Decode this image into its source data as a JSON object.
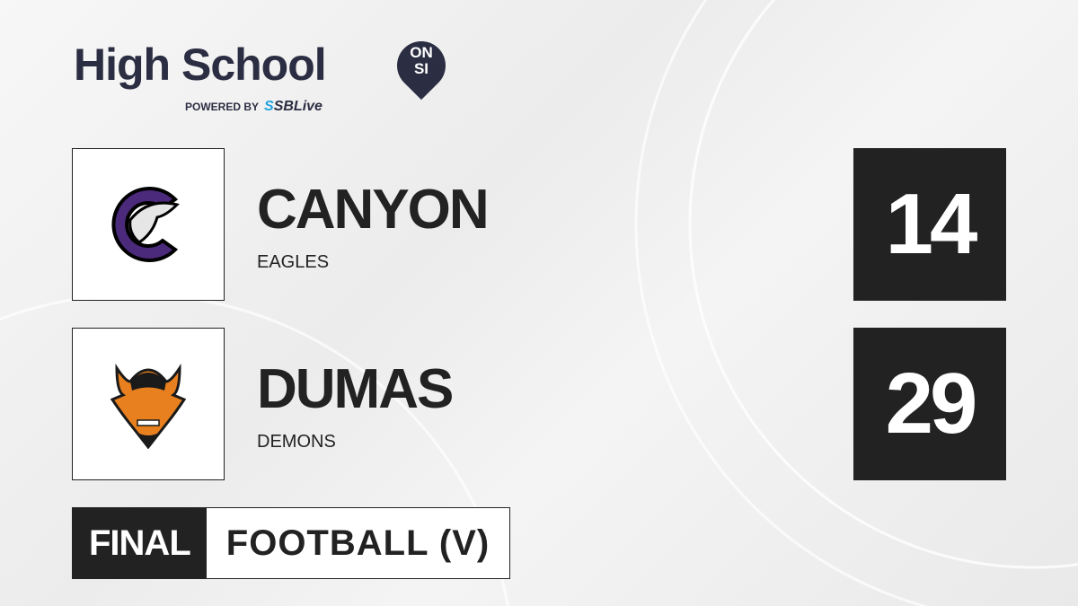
{
  "brand": {
    "title": "High School",
    "badge_top": "ON",
    "badge_bottom": "SI",
    "powered_by": "POWERED BY",
    "partner_prefix": "S",
    "partner": "SBLive"
  },
  "teams": [
    {
      "name": "CANYON",
      "mascot": "EAGLES",
      "score": "14",
      "logo_color": "#4b2a7b"
    },
    {
      "name": "DUMAS",
      "mascot": "DEMONS",
      "score": "29",
      "logo_color": "#e8801f"
    }
  ],
  "game": {
    "status": "FINAL",
    "sport": "FOOTBALL (V)"
  }
}
